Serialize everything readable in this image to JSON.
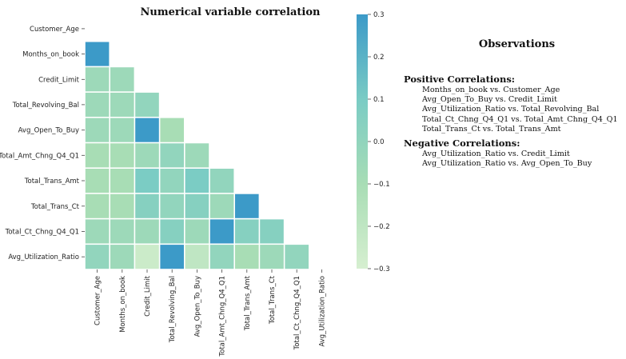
{
  "chart_data": {
    "type": "heatmap",
    "title": "Numerical variable correlation",
    "variables": [
      "Customer_Age",
      "Months_on_book",
      "Credit_Limit",
      "Total_Revolving_Bal",
      "Avg_Open_To_Buy",
      "Total_Amt_Chng_Q4_Q1",
      "Total_Trans_Amt",
      "Total_Trans_Ct",
      "Total_Ct_Chng_Q4_Q1",
      "Avg_Utilization_Ratio"
    ],
    "mask": "upper-triangle",
    "lower_triangle_values": [
      [
        0.3
      ],
      [
        -0.05,
        -0.05
      ],
      [
        -0.05,
        -0.05,
        0.0
      ],
      [
        -0.05,
        -0.05,
        0.3,
        -0.1
      ],
      [
        -0.1,
        -0.1,
        -0.05,
        0.0,
        -0.05
      ],
      [
        -0.1,
        -0.1,
        0.1,
        0.0,
        0.1,
        0.0
      ],
      [
        -0.1,
        -0.1,
        0.05,
        0.0,
        0.05,
        -0.05,
        0.3
      ],
      [
        -0.05,
        -0.05,
        -0.05,
        0.05,
        -0.05,
        0.3,
        0.05,
        0.05
      ],
      [
        0.0,
        -0.05,
        -0.25,
        0.3,
        -0.2,
        0.0,
        -0.1,
        -0.05,
        0.0
      ]
    ],
    "colorbar": {
      "range": [
        -0.3,
        0.3
      ],
      "ticks": [
        0.3,
        0.2,
        0.1,
        0.0,
        -0.1,
        -0.2,
        -0.3
      ],
      "tick_labels": [
        "0.3",
        "0.2",
        "0.1",
        "0.0",
        "−0.1",
        "−0.2",
        "−0.3"
      ],
      "colors": [
        "#d6efd0",
        "#a8ddb5",
        "#7bccc4",
        "#3c9ac8"
      ]
    },
    "grid": false,
    "cell_border_color": "#ffffff"
  },
  "observations": {
    "title": "Observations",
    "positive_heading": "Positive Correlations:",
    "positive": [
      "Months_on_book vs. Customer_Age",
      "Avg_Open_To_Buy vs. Credit_Limit",
      "Avg_Utilization_Ratio vs. Total_Revolving_Bal",
      "Total_Ct_Chng_Q4_Q1 vs. Total_Amt_Chng_Q4_Q1",
      "Total_Trans_Ct vs. Total_Trans_Amt"
    ],
    "negative_heading": "Negative Correlations:",
    "negative": [
      "Avg_Utilization_Ratio vs. Credit_Limit",
      "Avg_Utilization_Ratio vs. Avg_Open_To_Buy"
    ]
  }
}
